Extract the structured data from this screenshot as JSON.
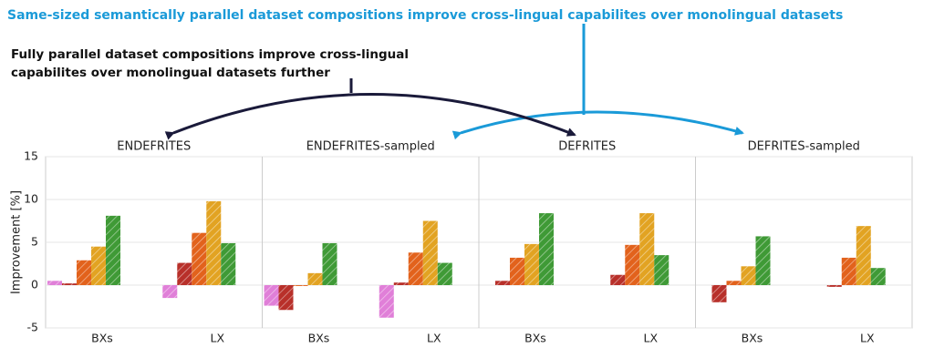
{
  "annotations": [
    {
      "text": "Same-sized semantically parallel dataset compositions improve cross-lingual capabilites over monolingual datasets"
    },
    {
      "lines": [
        "Fully parallel dataset compositions improve cross-lingual",
        "capabilites over monolingual datasets further"
      ]
    }
  ],
  "chart_data": [
    {
      "type": "bar",
      "title": "ENDEFRITES",
      "ylabel": "Improvement [%]",
      "ylim": [
        -5,
        15
      ],
      "yticks": [
        -5,
        0,
        5,
        10,
        15
      ],
      "grid": true,
      "categories": [
        "BXs",
        "LX"
      ],
      "series": [
        {
          "color": "#e07fd8",
          "values": [
            0.5,
            -1.5
          ]
        },
        {
          "color": "#b8302a",
          "values": [
            0.2,
            2.6
          ]
        },
        {
          "color": "#e2621c",
          "values": [
            2.9,
            6.1
          ]
        },
        {
          "color": "#e2a322",
          "values": [
            4.5,
            9.8
          ]
        },
        {
          "color": "#3f9a36",
          "values": [
            8.1,
            4.9
          ]
        }
      ]
    },
    {
      "type": "bar",
      "title": "ENDEFRITES-sampled",
      "ylim": [
        -5,
        15
      ],
      "grid": true,
      "categories": [
        "BXs",
        "LX"
      ],
      "series": [
        {
          "color": "#e07fd8",
          "values": [
            -2.4,
            -3.8
          ]
        },
        {
          "color": "#b8302a",
          "values": [
            -2.9,
            0.3
          ]
        },
        {
          "color": "#e2621c",
          "values": [
            -0.1,
            3.8
          ]
        },
        {
          "color": "#e2a322",
          "values": [
            1.4,
            7.5
          ]
        },
        {
          "color": "#3f9a36",
          "values": [
            4.9,
            2.6
          ]
        }
      ]
    },
    {
      "type": "bar",
      "title": "DEFRITES",
      "ylim": [
        -5,
        15
      ],
      "grid": true,
      "categories": [
        "BXs",
        "LX"
      ],
      "series": [
        {
          "color": "#e07fd8",
          "values": [
            null,
            null
          ]
        },
        {
          "color": "#b8302a",
          "values": [
            0.5,
            1.2
          ]
        },
        {
          "color": "#e2621c",
          "values": [
            3.2,
            4.7
          ]
        },
        {
          "color": "#e2a322",
          "values": [
            4.8,
            8.4
          ]
        },
        {
          "color": "#3f9a36",
          "values": [
            8.4,
            3.5
          ]
        }
      ]
    },
    {
      "type": "bar",
      "title": "DEFRITES-sampled",
      "ylim": [
        -5,
        15
      ],
      "grid": true,
      "categories": [
        "BXs",
        "LX"
      ],
      "series": [
        {
          "color": "#e07fd8",
          "values": [
            null,
            null
          ]
        },
        {
          "color": "#b8302a",
          "values": [
            -2.0,
            -0.2
          ]
        },
        {
          "color": "#e2621c",
          "values": [
            0.5,
            3.2
          ]
        },
        {
          "color": "#e2a322",
          "values": [
            2.2,
            6.9
          ]
        },
        {
          "color": "#3f9a36",
          "values": [
            5.7,
            2.0
          ]
        }
      ]
    }
  ]
}
